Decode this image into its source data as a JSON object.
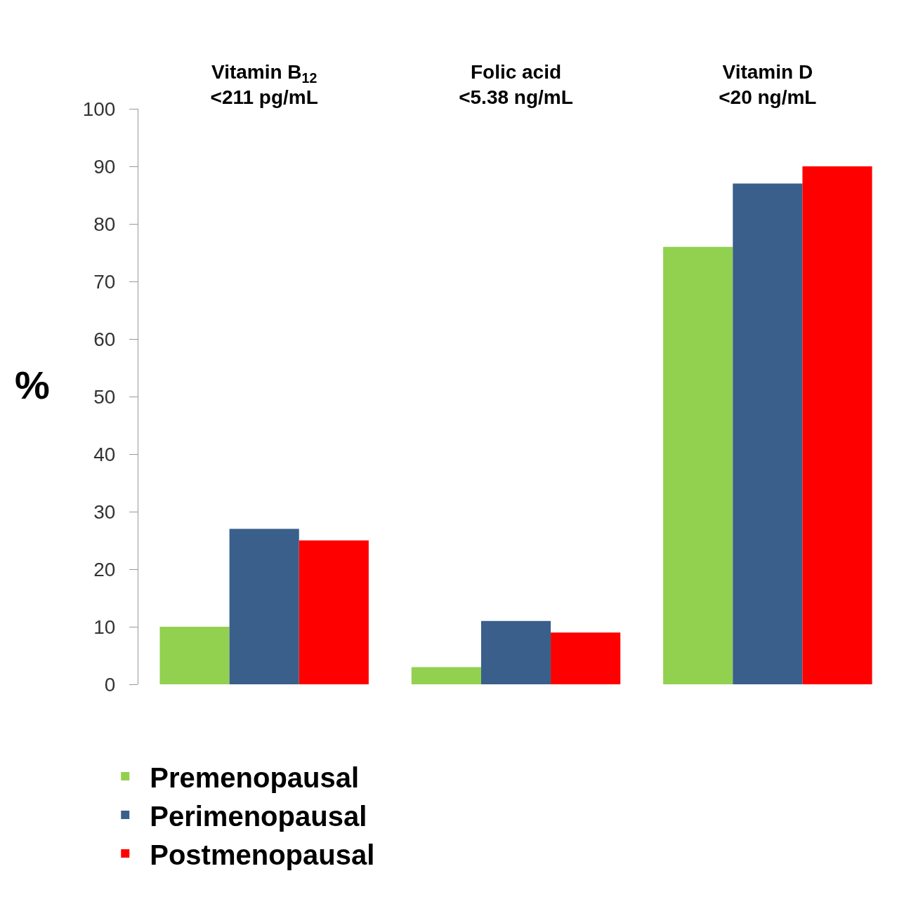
{
  "chart_data": {
    "type": "bar",
    "categories": [
      "Vitamin B$_{12}$\n<211 pg/mL",
      "Folic acid\n<5.38 ng/mL",
      "Vitamin D\n<20 ng/mL"
    ],
    "series": [
      {
        "name": "Premenopausal",
        "color": "#92d050",
        "values": [
          10,
          3,
          76
        ]
      },
      {
        "name": "Perimenopausal",
        "color": "#3a5f8b",
        "values": [
          27,
          11,
          87
        ]
      },
      {
        "name": "Postmenopausal",
        "color": "#ff0000",
        "values": [
          25,
          9,
          90
        ]
      }
    ],
    "ylabel": "%",
    "ylim": [
      0,
      100
    ],
    "yticks": [
      0,
      10,
      20,
      30,
      40,
      50,
      60,
      70,
      80,
      90,
      100
    ],
    "legend": "bottom left"
  }
}
